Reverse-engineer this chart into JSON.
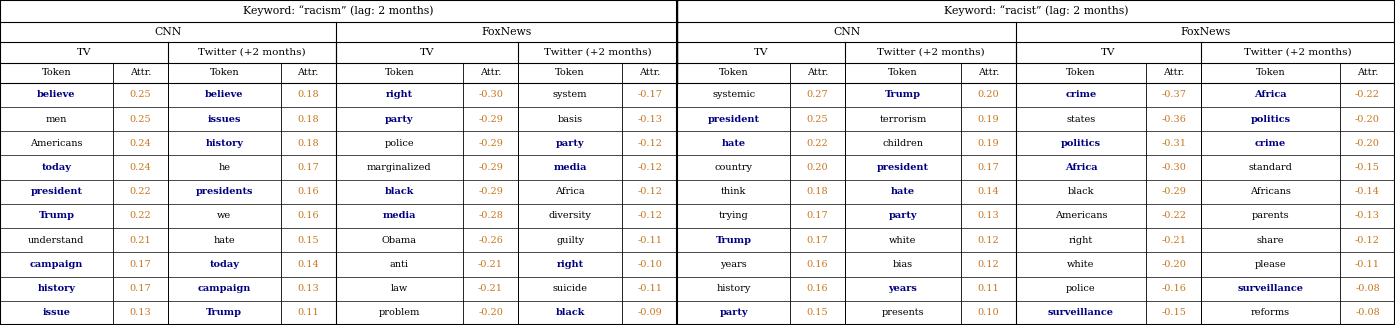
{
  "keyword_headers": [
    "Keyword: “racism” (lag: 2 months)",
    "Keyword: “racist” (lag: 2 months)"
  ],
  "network_headers": [
    "CNN",
    "FoxNews",
    "CNN",
    "FoxNews"
  ],
  "source_headers": [
    "TV",
    "Twitter (+2 months)",
    "TV",
    "Twitter (+2 months)",
    "TV",
    "Twitter (+2 months)",
    "TV",
    "Twitter (+2 months)"
  ],
  "col_headers": [
    "Token",
    "Attr.",
    "Token",
    "Attr.",
    "Token",
    "Attr.",
    "Token",
    "Attr.",
    "Token",
    "Attr.",
    "Token",
    "Attr.",
    "Token",
    "Attr.",
    "Token",
    "Attr."
  ],
  "racism_data": [
    [
      [
        "believe",
        true
      ],
      "0.25",
      [
        "believe",
        true
      ],
      "0.18",
      [
        "right",
        true
      ],
      "-0.30",
      "system",
      "-0.17"
    ],
    [
      "men",
      "0.25",
      [
        "issues",
        true
      ],
      "0.18",
      [
        "party",
        true
      ],
      "-0.29",
      "basis",
      "-0.13"
    ],
    [
      "Americans",
      "0.24",
      [
        "history",
        true
      ],
      "0.18",
      "police",
      "-0.29",
      [
        "party",
        true
      ],
      "-0.12"
    ],
    [
      [
        "today",
        true
      ],
      "0.24",
      "he",
      "0.17",
      "marginalized",
      "-0.29",
      [
        "media",
        true
      ],
      "-0.12"
    ],
    [
      [
        "president",
        true
      ],
      "0.22",
      [
        "presidents",
        true
      ],
      "0.16",
      [
        "black",
        true
      ],
      "-0.29",
      "Africa",
      "-0.12"
    ],
    [
      [
        "Trump",
        true
      ],
      "0.22",
      "we",
      "0.16",
      [
        "media",
        true
      ],
      "-0.28",
      "diversity",
      "-0.12"
    ],
    [
      "understand",
      "0.21",
      "hate",
      "0.15",
      "Obama",
      "-0.26",
      "guilty",
      "-0.11"
    ],
    [
      [
        "campaign",
        true
      ],
      "0.17",
      [
        "today",
        true
      ],
      "0.14",
      "anti",
      "-0.21",
      [
        "right",
        true
      ],
      "-0.10"
    ],
    [
      [
        "history",
        true
      ],
      "0.17",
      [
        "campaign",
        true
      ],
      "0.13",
      "law",
      "-0.21",
      "suicide",
      "-0.11"
    ],
    [
      [
        "issue",
        true
      ],
      "0.13",
      [
        "Trump",
        true
      ],
      "0.11",
      "problem",
      "-0.20",
      [
        "black",
        true
      ],
      "-0.09"
    ]
  ],
  "racist_data": [
    [
      "systemic",
      "0.27",
      [
        "Trump",
        true
      ],
      "0.20",
      [
        "crime",
        true
      ],
      "-0.37",
      [
        "Africa",
        true
      ],
      "-0.22"
    ],
    [
      [
        "president",
        true
      ],
      "0.25",
      "terrorism",
      "0.19",
      "states",
      "-0.36",
      [
        "politics",
        true
      ],
      "-0.20"
    ],
    [
      [
        "hate",
        true
      ],
      "0.22",
      "children",
      "0.19",
      [
        "politics",
        true
      ],
      "-0.31",
      [
        "crime",
        true
      ],
      "-0.20"
    ],
    [
      "country",
      "0.20",
      [
        "president",
        true
      ],
      "0.17",
      [
        "Africa",
        true
      ],
      "-0.30",
      "standard",
      "-0.15"
    ],
    [
      "think",
      "0.18",
      [
        "hate",
        true
      ],
      "0.14",
      "black",
      "-0.29",
      "Africans",
      "-0.14"
    ],
    [
      "trying",
      "0.17",
      [
        "party",
        true
      ],
      "0.13",
      "Americans",
      "-0.22",
      "parents",
      "-0.13"
    ],
    [
      [
        "Trump",
        true
      ],
      "0.17",
      "white",
      "0.12",
      "right",
      "-0.21",
      "share",
      "-0.12"
    ],
    [
      "years",
      "0.16",
      "bias",
      "0.12",
      "white",
      "-0.20",
      "please",
      "-0.11"
    ],
    [
      "history",
      "0.16",
      [
        "years",
        true
      ],
      "0.11",
      "police",
      "-0.16",
      [
        "surveillance",
        true
      ],
      "-0.08"
    ],
    [
      [
        "party",
        true
      ],
      "0.15",
      "presents",
      "0.10",
      [
        "surveillance",
        true
      ],
      "-0.15",
      "reforms",
      "-0.08"
    ]
  ],
  "bg_color": "#ffffff",
  "text_color": "#000000",
  "bold_color": "#000080",
  "number_color": "#c87820",
  "header_text_color": "#000000",
  "line_color": "#000000",
  "col_widths_raw": [
    78,
    38,
    78,
    38,
    88,
    38,
    72,
    38,
    78,
    38,
    80,
    38,
    90,
    38,
    96,
    38
  ],
  "figwidth": 13.95,
  "figheight": 3.25,
  "dpi": 100
}
